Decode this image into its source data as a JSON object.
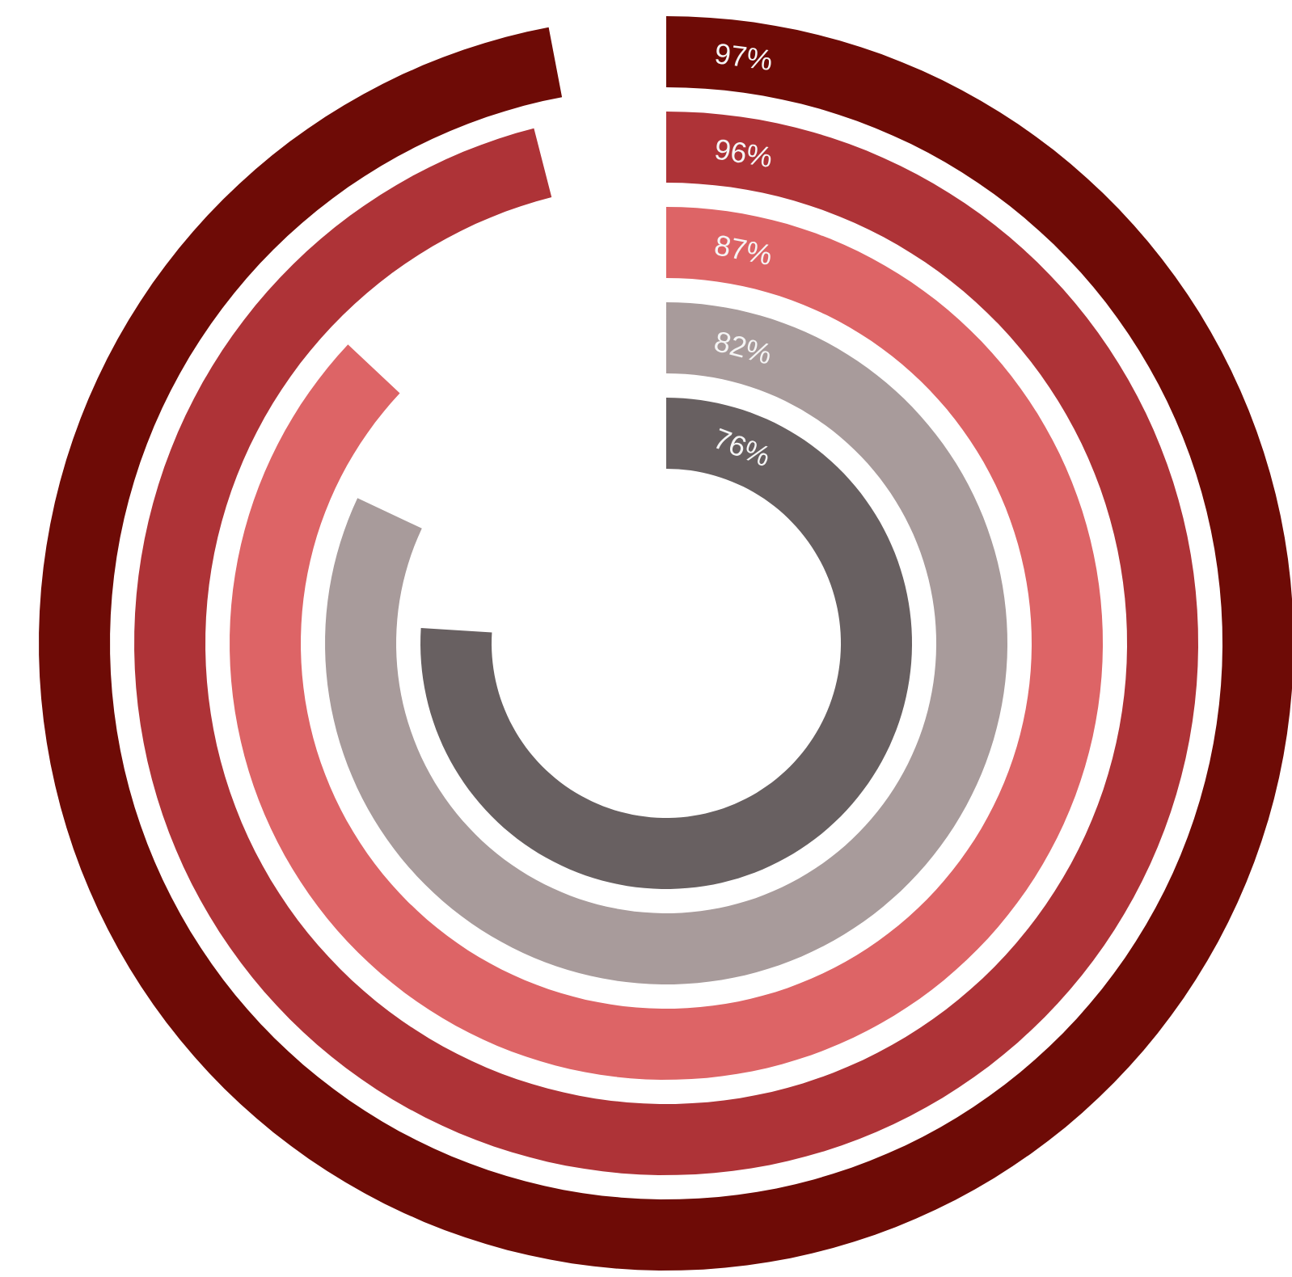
{
  "chart_data": {
    "type": "other",
    "categories": [
      null,
      null,
      null,
      null,
      null
    ],
    "values": [
      97,
      96,
      87,
      82,
      76
    ],
    "value_labels": [
      "97%",
      "96%",
      "87%",
      "82%",
      "76%"
    ],
    "colors": [
      "#6e0b06",
      "#ae3337",
      "#dd6466",
      "#a89b9b",
      "#686061"
    ]
  }
}
